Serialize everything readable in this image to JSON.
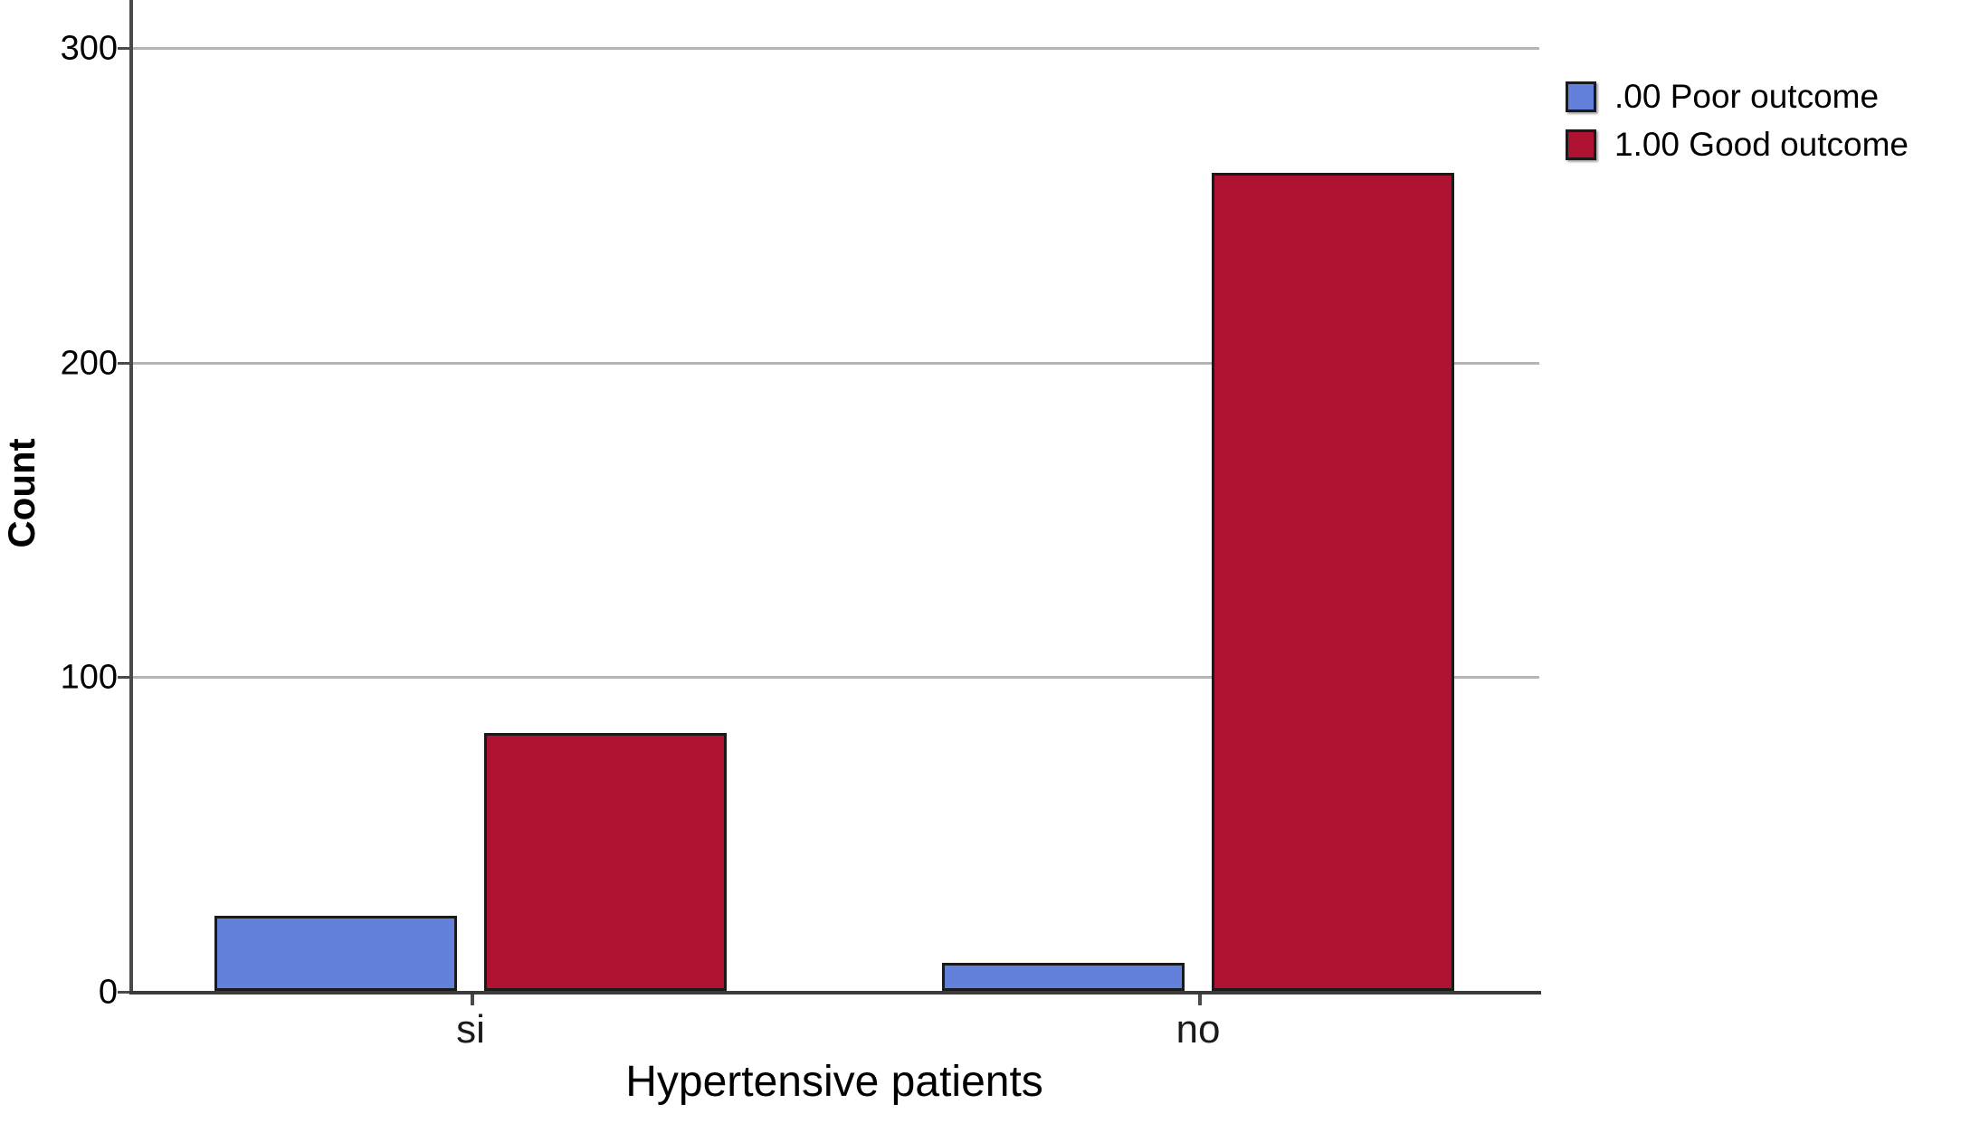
{
  "chart_data": {
    "type": "bar",
    "title": "",
    "xlabel": "Hypertensive patients",
    "ylabel": "Count",
    "categories": [
      "si",
      "no"
    ],
    "series": [
      {
        "name": ".00 Poor outcome",
        "color": "#6380DA",
        "values": [
          24,
          9
        ]
      },
      {
        "name": "1.00 Good outcome",
        "color": "#B01231",
        "values": [
          82,
          260
        ]
      }
    ],
    "yticks": [
      0,
      100,
      200,
      300
    ],
    "ylim": [
      0,
      315
    ],
    "grid": "horizontal-gridlines-at-100-200-300",
    "legend_position": "top-right",
    "bar_outline_color": "#1a1a1a",
    "axis_color": "#4a4a4a",
    "gridline_color": "#b5b5b5"
  }
}
